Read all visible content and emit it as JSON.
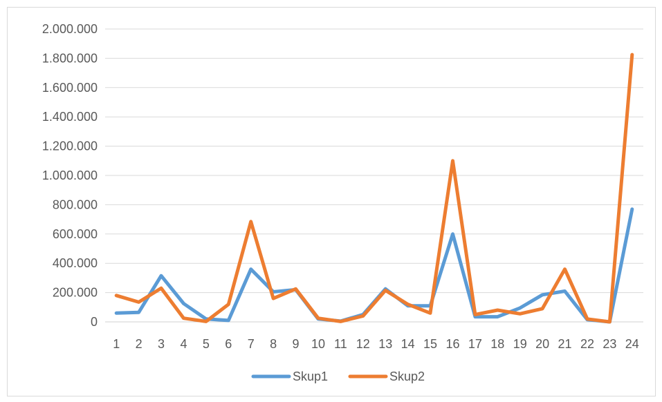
{
  "chart_data": {
    "type": "line",
    "title": "",
    "xlabel": "",
    "ylabel": "",
    "x": [
      "1",
      "2",
      "3",
      "4",
      "5",
      "6",
      "7",
      "8",
      "9",
      "10",
      "11",
      "12",
      "13",
      "14",
      "15",
      "16",
      "17",
      "18",
      "19",
      "20",
      "21",
      "22",
      "23",
      "24"
    ],
    "ylim": [
      0,
      2000000
    ],
    "yticks": [
      0,
      200000,
      400000,
      600000,
      800000,
      1000000,
      1200000,
      1400000,
      1600000,
      1800000,
      2000000
    ],
    "ytick_labels": [
      "0",
      "200.000",
      "400.000",
      "600.000",
      "800.000",
      "1.000.000",
      "1.200.000",
      "1.400.000",
      "1.600.000",
      "1.800.000",
      "2.000.000"
    ],
    "grid": true,
    "legend_position": "bottom",
    "series": [
      {
        "name": "Skup1",
        "color": "#5b9bd5",
        "values": [
          60000,
          65000,
          315000,
          125000,
          20000,
          10000,
          360000,
          205000,
          220000,
          20000,
          5000,
          50000,
          225000,
          110000,
          110000,
          600000,
          35000,
          35000,
          95000,
          185000,
          210000,
          15000,
          0,
          770000
        ]
      },
      {
        "name": "Skup2",
        "color": "#ed7d31",
        "values": [
          180000,
          135000,
          230000,
          25000,
          3000,
          120000,
          685000,
          160000,
          225000,
          25000,
          3000,
          40000,
          215000,
          120000,
          60000,
          1100000,
          50000,
          80000,
          55000,
          90000,
          360000,
          20000,
          0,
          1825000
        ]
      }
    ]
  }
}
